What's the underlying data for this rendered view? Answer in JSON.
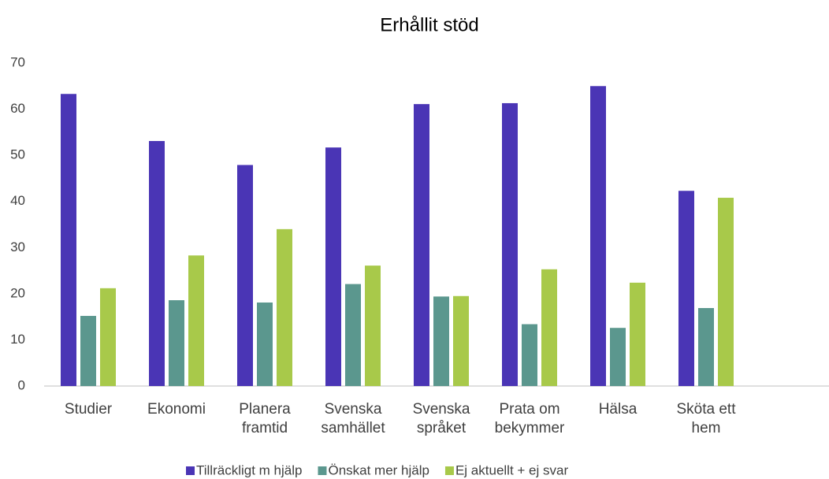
{
  "chart_data": {
    "type": "bar",
    "title": "Erhållit stöd",
    "categories": [
      "Studier",
      "Ekonomi",
      "Planera\nframtid",
      "Svenska\nsamhället",
      "Svenska\nspråket",
      "Prata om\nbekymmer",
      "Hälsa",
      "Sköta ett\nhem",
      null
    ],
    "series": [
      {
        "name": "Tillräckligt m hjälp",
        "color": "#4a35b5",
        "values": [
          63.3,
          53.1,
          47.9,
          51.7,
          61.1,
          61.3,
          65.0,
          42.3,
          null
        ]
      },
      {
        "name": "Önskat mer hjälp",
        "color": "#5b978e",
        "values": [
          15.2,
          18.6,
          18.1,
          22.1,
          19.4,
          13.4,
          12.6,
          16.9,
          null
        ]
      },
      {
        "name": "Ej aktuellt + ej svar",
        "color": "#a8c94a",
        "values": [
          21.2,
          28.3,
          34.0,
          26.1,
          19.5,
          25.3,
          22.4,
          40.8,
          null
        ]
      }
    ],
    "ylim": [
      0,
      70
    ],
    "yticks": [
      0,
      10,
      20,
      30,
      40,
      50,
      60,
      70
    ],
    "grid": false,
    "legend": "bottom"
  }
}
